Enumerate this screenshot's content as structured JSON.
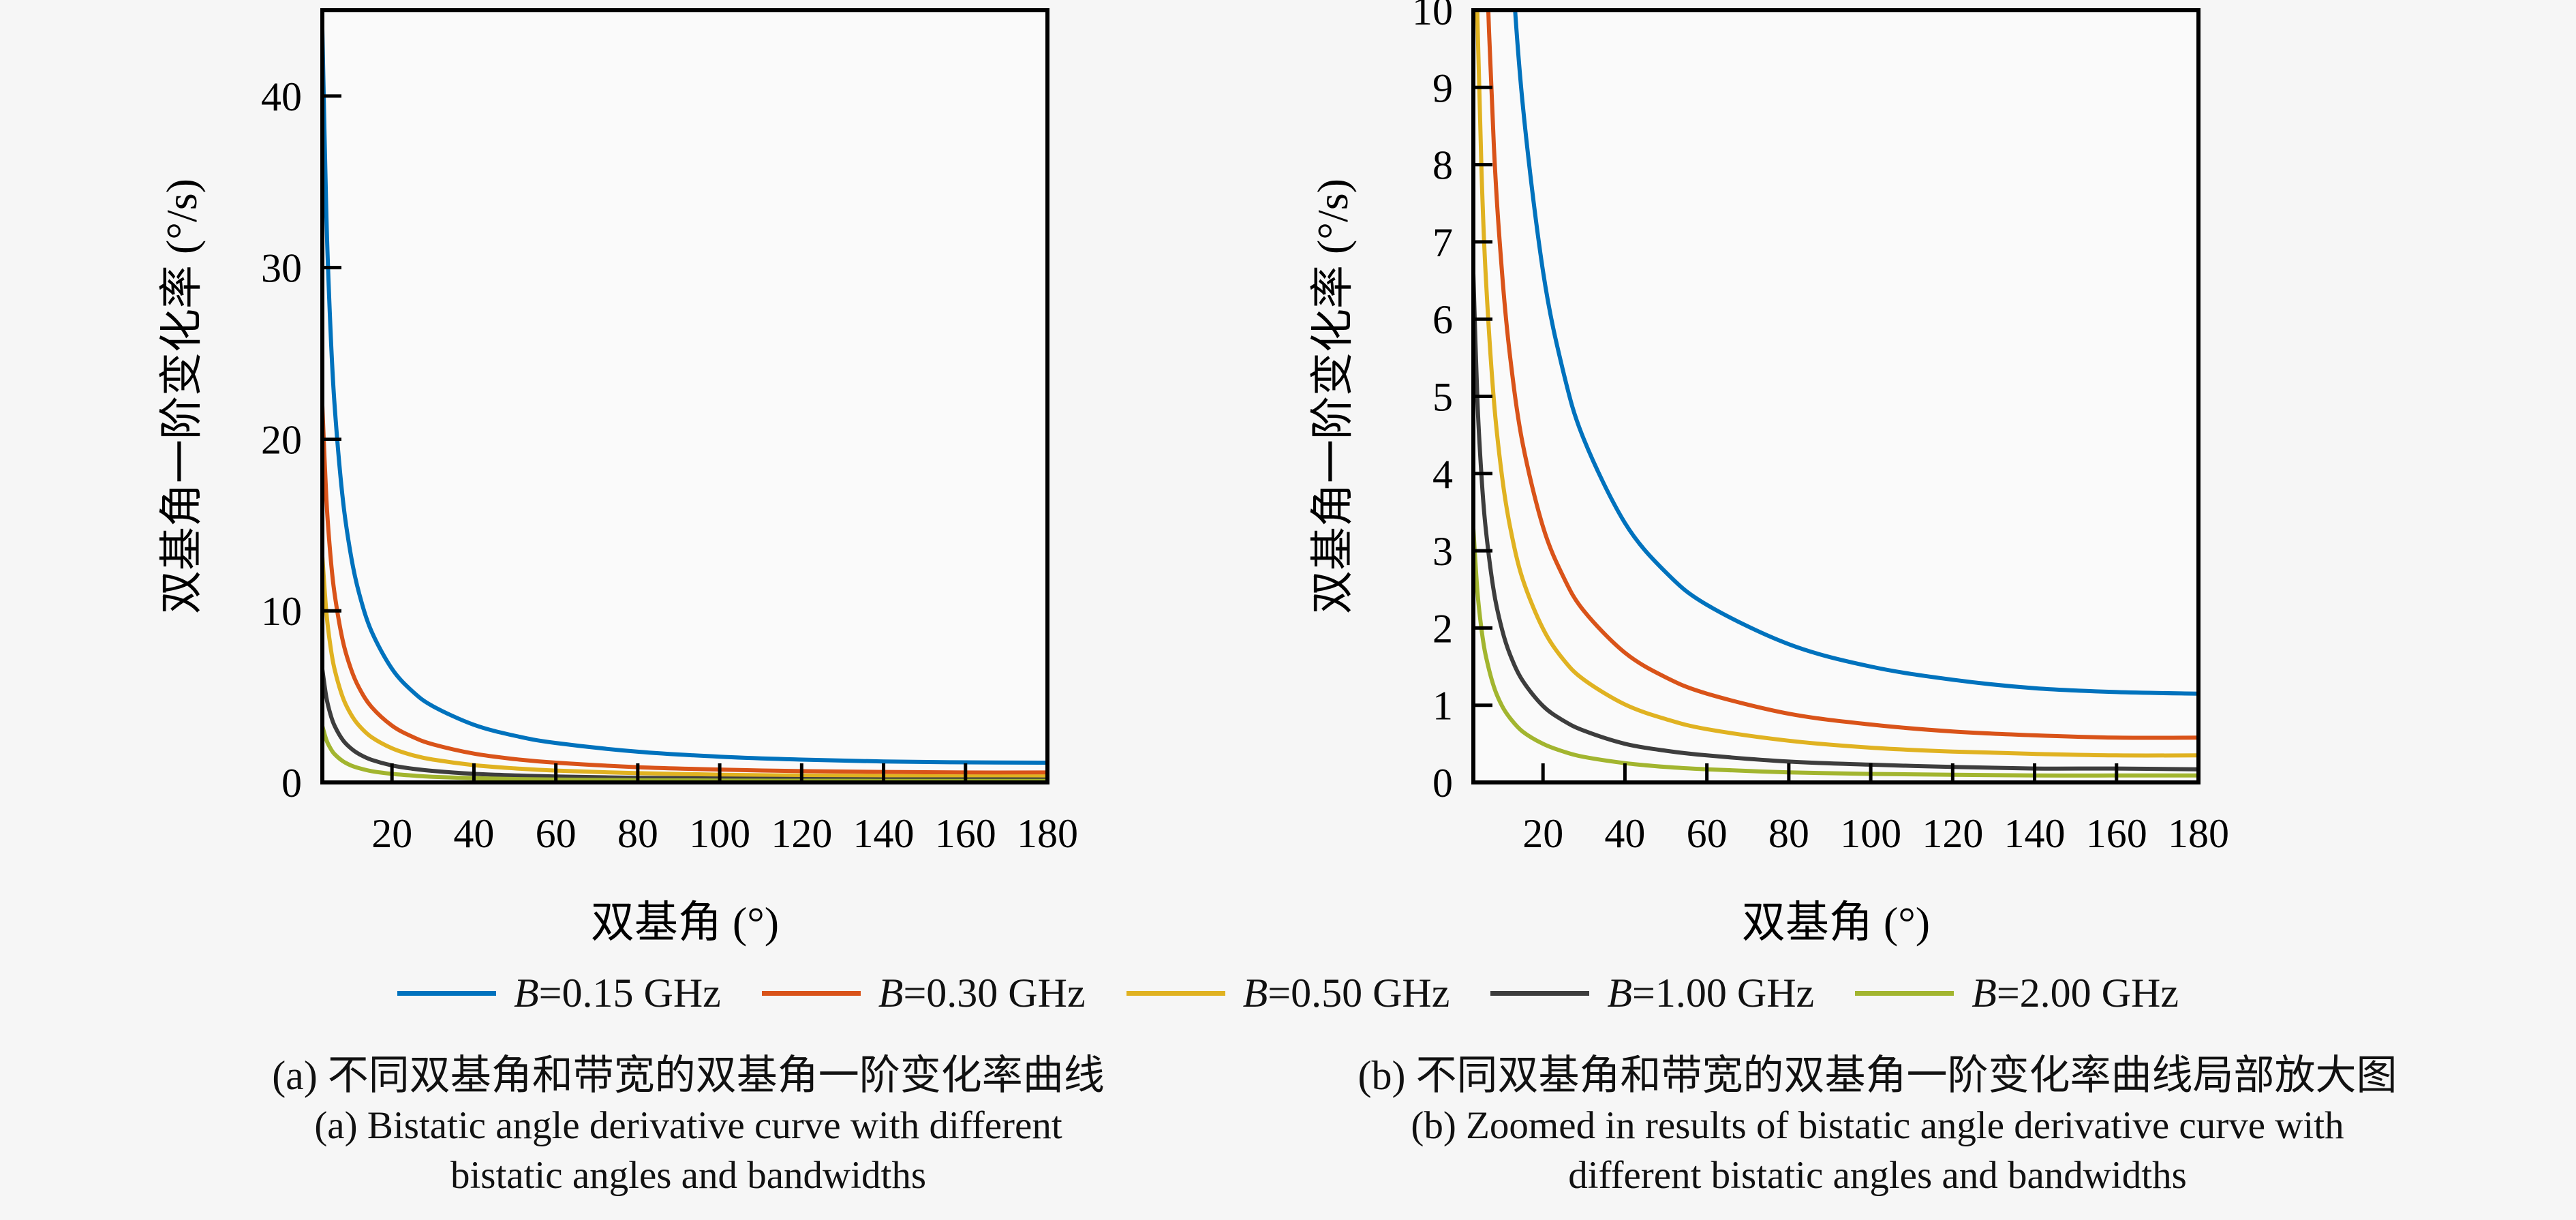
{
  "page": {
    "bg": "#f6f6f6",
    "plot_bg": "#fafafa",
    "axis_color": "#000000",
    "text_color": "#111111"
  },
  "legend": {
    "items": [
      {
        "var": "B",
        "rest": "=0.15 GHz",
        "color": "#0072BD"
      },
      {
        "var": "B",
        "rest": "=0.30 GHz",
        "color": "#D95319"
      },
      {
        "var": "B",
        "rest": "=0.50 GHz",
        "color": "#E0B221"
      },
      {
        "var": "B",
        "rest": "=1.00 GHz",
        "color": "#3D3D3D"
      },
      {
        "var": "B",
        "rest": "=2.00 GHz",
        "color": "#A2B52F"
      }
    ]
  },
  "captions": {
    "left": {
      "line1": "(a) 不同双基角和带宽的双基角一阶变化率曲线",
      "line2": "(a) Bistatic angle derivative curve with different",
      "line3": "bistatic angles and bandwidths"
    },
    "right": {
      "line1": "(b) 不同双基角和带宽的双基角一阶变化率曲线局部放大图",
      "line2": "(b) Zoomed in results of bistatic angle derivative curve with",
      "line3": "different bistatic angles and bandwidths"
    }
  },
  "chart_data": [
    {
      "id": "chart-a",
      "type": "line",
      "title": "",
      "xlabel": "双基角 (°)",
      "ylabel": "双基角一阶变化率 (°/s)",
      "xlim": [
        3,
        180
      ],
      "ylim": [
        0,
        45
      ],
      "xticks": [
        20,
        40,
        60,
        80,
        100,
        120,
        140,
        160,
        180
      ],
      "yticks": [
        0,
        10,
        20,
        30,
        40
      ],
      "grid": false,
      "legend_position": "below-figure",
      "x": [
        3,
        4,
        5,
        6,
        8,
        10,
        12,
        15,
        20,
        25,
        30,
        40,
        50,
        60,
        80,
        100,
        120,
        140,
        160,
        180
      ],
      "series": [
        {
          "name": "B=0.15 GHz",
          "color": "#0072BD",
          "values": [
            43.93,
            32.95,
            26.37,
            21.97,
            16.49,
            13.19,
            11.0,
            8.81,
            6.62,
            5.31,
            4.44,
            3.36,
            2.72,
            2.3,
            1.79,
            1.5,
            1.33,
            1.22,
            1.17,
            1.15
          ]
        },
        {
          "name": "B=0.30 GHz",
          "color": "#D95319",
          "values": [
            21.97,
            16.47,
            13.18,
            10.99,
            8.24,
            6.6,
            5.5,
            4.4,
            3.31,
            2.66,
            2.22,
            1.68,
            1.36,
            1.15,
            0.89,
            0.75,
            0.66,
            0.61,
            0.58,
            0.58
          ]
        },
        {
          "name": "B=0.50 GHz",
          "color": "#E0B221",
          "values": [
            13.18,
            9.88,
            7.91,
            6.59,
            4.95,
            3.96,
            3.3,
            2.64,
            1.99,
            1.59,
            1.33,
            1.01,
            0.82,
            0.69,
            0.54,
            0.45,
            0.4,
            0.37,
            0.35,
            0.35
          ]
        },
        {
          "name": "B=1.00 GHz",
          "color": "#3D3D3D",
          "values": [
            6.59,
            4.94,
            3.96,
            3.3,
            2.47,
            1.98,
            1.65,
            1.32,
            0.99,
            0.8,
            0.67,
            0.5,
            0.41,
            0.35,
            0.27,
            0.23,
            0.2,
            0.18,
            0.18,
            0.17
          ]
        },
        {
          "name": "B=2.00 GHz",
          "color": "#A2B52F",
          "values": [
            3.29,
            2.47,
            1.98,
            1.65,
            1.24,
            0.99,
            0.83,
            0.66,
            0.5,
            0.4,
            0.33,
            0.25,
            0.2,
            0.17,
            0.13,
            0.11,
            0.1,
            0.09,
            0.09,
            0.09
          ]
        }
      ]
    },
    {
      "id": "chart-b",
      "type": "line",
      "title": "",
      "xlabel": "双基角 (°)",
      "ylabel": "双基角一阶变化率 (°/s)",
      "xlim": [
        3,
        180
      ],
      "ylim": [
        0,
        10
      ],
      "xticks": [
        20,
        40,
        60,
        80,
        100,
        120,
        140,
        160,
        180
      ],
      "yticks": [
        0,
        1,
        2,
        3,
        4,
        5,
        6,
        7,
        8,
        9,
        10
      ],
      "grid": false,
      "legend_position": "below-figure",
      "x": [
        3,
        4,
        5,
        6,
        8,
        10,
        12,
        15,
        20,
        25,
        30,
        40,
        50,
        60,
        80,
        100,
        120,
        140,
        160,
        180
      ],
      "series": [
        {
          "name": "B=0.15 GHz",
          "color": "#0072BD",
          "values": [
            43.93,
            32.95,
            26.37,
            21.97,
            16.49,
            13.19,
            11.0,
            8.81,
            6.62,
            5.31,
            4.44,
            3.36,
            2.72,
            2.3,
            1.79,
            1.5,
            1.33,
            1.22,
            1.17,
            1.15
          ]
        },
        {
          "name": "B=0.30 GHz",
          "color": "#D95319",
          "values": [
            21.97,
            16.47,
            13.18,
            10.99,
            8.24,
            6.6,
            5.5,
            4.4,
            3.31,
            2.66,
            2.22,
            1.68,
            1.36,
            1.15,
            0.89,
            0.75,
            0.66,
            0.61,
            0.58,
            0.58
          ]
        },
        {
          "name": "B=0.50 GHz",
          "color": "#E0B221",
          "values": [
            13.18,
            9.88,
            7.91,
            6.59,
            4.95,
            3.96,
            3.3,
            2.64,
            1.99,
            1.59,
            1.33,
            1.01,
            0.82,
            0.69,
            0.54,
            0.45,
            0.4,
            0.37,
            0.35,
            0.35
          ]
        },
        {
          "name": "B=1.00 GHz",
          "color": "#3D3D3D",
          "values": [
            6.59,
            4.94,
            3.96,
            3.3,
            2.47,
            1.98,
            1.65,
            1.32,
            0.99,
            0.8,
            0.67,
            0.5,
            0.41,
            0.35,
            0.27,
            0.23,
            0.2,
            0.18,
            0.18,
            0.17
          ]
        },
        {
          "name": "B=2.00 GHz",
          "color": "#A2B52F",
          "values": [
            3.29,
            2.47,
            1.98,
            1.65,
            1.24,
            0.99,
            0.83,
            0.66,
            0.5,
            0.4,
            0.33,
            0.25,
            0.2,
            0.17,
            0.13,
            0.11,
            0.1,
            0.09,
            0.09,
            0.09
          ]
        }
      ]
    }
  ]
}
